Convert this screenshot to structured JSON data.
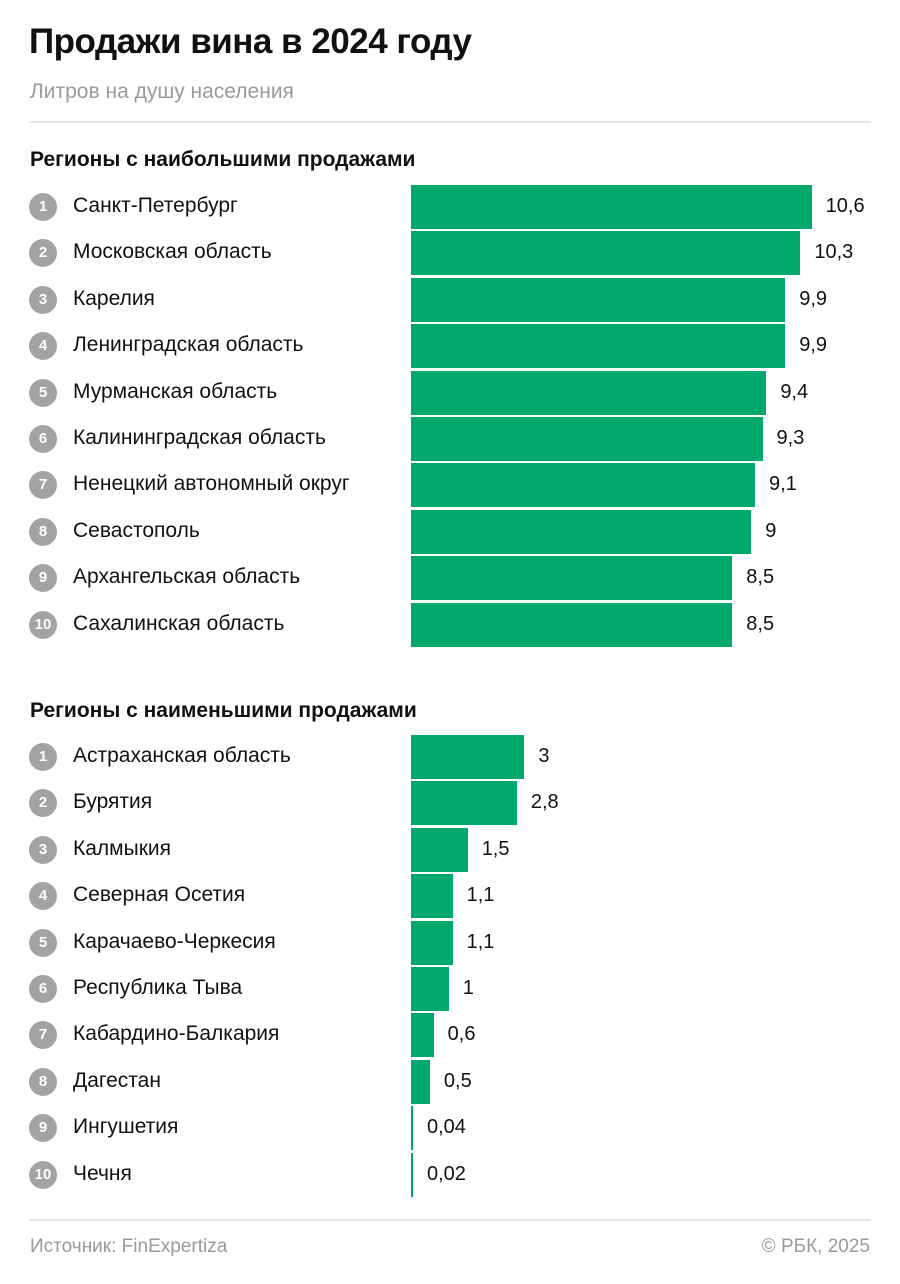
{
  "title": "Продажи вина в 2024 году",
  "subtitle": "Литров на душу населения",
  "colors": {
    "bar": "#00a86b",
    "badge": "#a3a3a3"
  },
  "footer": {
    "source": "Источник: FinExpertiza",
    "copyright": "© РБК, 2025"
  },
  "chart_data": [
    {
      "type": "bar",
      "orientation": "horizontal",
      "title": "Регионы с наибольшими продажами",
      "unit": "литров на душу населения",
      "categories": [
        "Санкт-Петербург",
        "Московская область",
        "Карелия",
        "Ленинградская область",
        "Мурманская область",
        "Калининградская область",
        "Ненецкий автономный округ",
        "Севастополь",
        "Архангельская область",
        "Сахалинская область"
      ],
      "values": [
        10.6,
        10.3,
        9.9,
        9.9,
        9.4,
        9.3,
        9.1,
        9,
        8.5,
        8.5
      ],
      "labels": [
        "10,6",
        "10,3",
        "9,9",
        "9,9",
        "9,4",
        "9,3",
        "9,1",
        "9",
        "8,5",
        "8,5"
      ]
    },
    {
      "type": "bar",
      "orientation": "horizontal",
      "title": "Регионы с наименьшими продажами",
      "unit": "литров на душу населения",
      "categories": [
        "Астраханская область",
        "Бурятия",
        "Калмыкия",
        "Северная Осетия",
        "Карачаево-Черкесия",
        "Республика Тыва",
        "Кабардино-Балкария",
        "Дагестан",
        "Ингушетия",
        "Чечня"
      ],
      "values": [
        3,
        2.8,
        1.5,
        1.1,
        1.1,
        1,
        0.6,
        0.5,
        0.04,
        0.02
      ],
      "labels": [
        "3",
        "2,8",
        "1,5",
        "1,1",
        "1,1",
        "1",
        "0,6",
        "0,5",
        "0,04",
        "0,02"
      ]
    }
  ]
}
